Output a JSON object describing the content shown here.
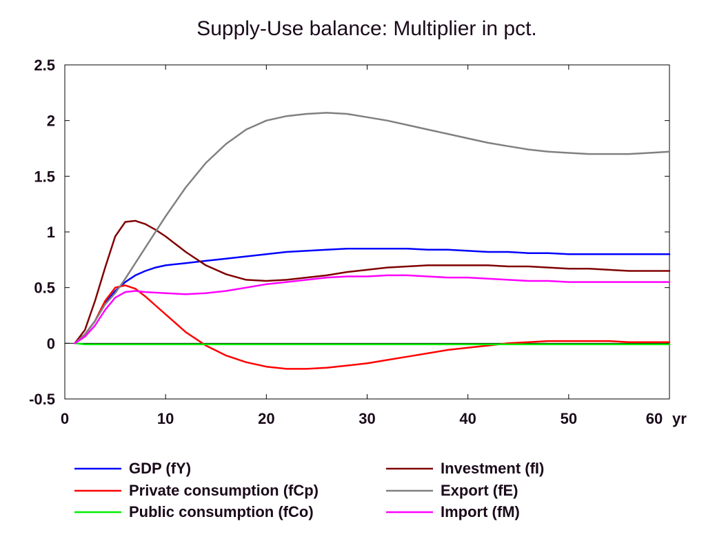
{
  "chart_data": {
    "type": "line",
    "title": "Supply-Use balance: Multiplier in pct.",
    "xlabel": "",
    "ylabel": "",
    "x_unit_label": "yr",
    "xlim": [
      0,
      60
    ],
    "ylim": [
      -0.5,
      2.5
    ],
    "x_ticks": [
      0,
      10,
      20,
      30,
      40,
      50,
      60
    ],
    "y_ticks": [
      -0.5,
      0,
      0.5,
      1,
      1.5,
      2,
      2.5
    ],
    "y_tick_labels": [
      "-0.5",
      "0",
      "0.5",
      "1",
      "1.5",
      "2",
      "2.5"
    ],
    "grid": false,
    "legend_position": "bottom",
    "series": [
      {
        "name": "GDP (fY)",
        "color": "#0000ff",
        "points": [
          [
            1,
            0
          ],
          [
            2,
            0.08
          ],
          [
            3,
            0.2
          ],
          [
            4,
            0.36
          ],
          [
            5,
            0.47
          ],
          [
            6,
            0.55
          ],
          [
            7,
            0.61
          ],
          [
            8,
            0.65
          ],
          [
            9,
            0.68
          ],
          [
            10,
            0.7
          ],
          [
            12,
            0.72
          ],
          [
            14,
            0.74
          ],
          [
            16,
            0.76
          ],
          [
            18,
            0.78
          ],
          [
            20,
            0.8
          ],
          [
            22,
            0.82
          ],
          [
            24,
            0.83
          ],
          [
            26,
            0.84
          ],
          [
            28,
            0.85
          ],
          [
            30,
            0.85
          ],
          [
            32,
            0.85
          ],
          [
            34,
            0.85
          ],
          [
            36,
            0.84
          ],
          [
            38,
            0.84
          ],
          [
            40,
            0.83
          ],
          [
            42,
            0.82
          ],
          [
            44,
            0.82
          ],
          [
            46,
            0.81
          ],
          [
            48,
            0.81
          ],
          [
            50,
            0.8
          ],
          [
            52,
            0.8
          ],
          [
            54,
            0.8
          ],
          [
            56,
            0.8
          ],
          [
            58,
            0.8
          ],
          [
            60,
            0.8
          ]
        ]
      },
      {
        "name": "Private consumption (fCp)",
        "color": "#ff0000",
        "points": [
          [
            1,
            0
          ],
          [
            2,
            0.08
          ],
          [
            3,
            0.2
          ],
          [
            4,
            0.38
          ],
          [
            5,
            0.5
          ],
          [
            6,
            0.52
          ],
          [
            7,
            0.49
          ],
          [
            8,
            0.42
          ],
          [
            9,
            0.34
          ],
          [
            10,
            0.26
          ],
          [
            12,
            0.1
          ],
          [
            14,
            -0.02
          ],
          [
            16,
            -0.11
          ],
          [
            18,
            -0.17
          ],
          [
            20,
            -0.21
          ],
          [
            22,
            -0.23
          ],
          [
            24,
            -0.23
          ],
          [
            26,
            -0.22
          ],
          [
            28,
            -0.2
          ],
          [
            30,
            -0.18
          ],
          [
            32,
            -0.15
          ],
          [
            34,
            -0.12
          ],
          [
            36,
            -0.09
          ],
          [
            38,
            -0.06
          ],
          [
            40,
            -0.04
          ],
          [
            42,
            -0.02
          ],
          [
            44,
            0.0
          ],
          [
            46,
            0.01
          ],
          [
            48,
            0.02
          ],
          [
            50,
            0.02
          ],
          [
            52,
            0.02
          ],
          [
            54,
            0.02
          ],
          [
            56,
            0.01
          ],
          [
            58,
            0.01
          ],
          [
            60,
            0.01
          ]
        ]
      },
      {
        "name": "Public consumption (fCo)",
        "color": "#00ee00",
        "points": [
          [
            1,
            0
          ],
          [
            2,
            -0.01
          ],
          [
            3,
            -0.01
          ],
          [
            5,
            -0.01
          ],
          [
            10,
            -0.01
          ],
          [
            20,
            -0.01
          ],
          [
            30,
            -0.01
          ],
          [
            40,
            -0.01
          ],
          [
            50,
            -0.01
          ],
          [
            60,
            -0.01
          ]
        ]
      },
      {
        "name": "Investment (fI)",
        "color": "#800000",
        "points": [
          [
            1,
            0
          ],
          [
            2,
            0.12
          ],
          [
            3,
            0.38
          ],
          [
            4,
            0.68
          ],
          [
            5,
            0.96
          ],
          [
            6,
            1.09
          ],
          [
            7,
            1.1
          ],
          [
            8,
            1.07
          ],
          [
            9,
            1.02
          ],
          [
            10,
            0.96
          ],
          [
            12,
            0.82
          ],
          [
            14,
            0.7
          ],
          [
            16,
            0.62
          ],
          [
            18,
            0.57
          ],
          [
            20,
            0.56
          ],
          [
            22,
            0.57
          ],
          [
            24,
            0.59
          ],
          [
            26,
            0.61
          ],
          [
            28,
            0.64
          ],
          [
            30,
            0.66
          ],
          [
            32,
            0.68
          ],
          [
            34,
            0.69
          ],
          [
            36,
            0.7
          ],
          [
            38,
            0.7
          ],
          [
            40,
            0.7
          ],
          [
            42,
            0.7
          ],
          [
            44,
            0.69
          ],
          [
            46,
            0.69
          ],
          [
            48,
            0.68
          ],
          [
            50,
            0.67
          ],
          [
            52,
            0.67
          ],
          [
            54,
            0.66
          ],
          [
            56,
            0.65
          ],
          [
            58,
            0.65
          ],
          [
            60,
            0.65
          ]
        ]
      },
      {
        "name": "Export (fE)",
        "color": "#808080",
        "points": [
          [
            1,
            0
          ],
          [
            2,
            0.08
          ],
          [
            3,
            0.2
          ],
          [
            4,
            0.35
          ],
          [
            5,
            0.45
          ],
          [
            6,
            0.58
          ],
          [
            7,
            0.72
          ],
          [
            8,
            0.86
          ],
          [
            9,
            1.0
          ],
          [
            10,
            1.14
          ],
          [
            12,
            1.4
          ],
          [
            14,
            1.62
          ],
          [
            16,
            1.79
          ],
          [
            18,
            1.92
          ],
          [
            20,
            2.0
          ],
          [
            22,
            2.04
          ],
          [
            24,
            2.06
          ],
          [
            26,
            2.07
          ],
          [
            28,
            2.06
          ],
          [
            30,
            2.03
          ],
          [
            32,
            2.0
          ],
          [
            34,
            1.96
          ],
          [
            36,
            1.92
          ],
          [
            38,
            1.88
          ],
          [
            40,
            1.84
          ],
          [
            42,
            1.8
          ],
          [
            44,
            1.77
          ],
          [
            46,
            1.74
          ],
          [
            48,
            1.72
          ],
          [
            50,
            1.71
          ],
          [
            52,
            1.7
          ],
          [
            54,
            1.7
          ],
          [
            56,
            1.7
          ],
          [
            58,
            1.71
          ],
          [
            60,
            1.72
          ]
        ]
      },
      {
        "name": "Import (fM)",
        "color": "#ff00ff",
        "points": [
          [
            1,
            0
          ],
          [
            2,
            0.06
          ],
          [
            3,
            0.16
          ],
          [
            4,
            0.3
          ],
          [
            5,
            0.41
          ],
          [
            6,
            0.46
          ],
          [
            7,
            0.47
          ],
          [
            8,
            0.46
          ],
          [
            10,
            0.45
          ],
          [
            12,
            0.44
          ],
          [
            14,
            0.45
          ],
          [
            16,
            0.47
          ],
          [
            18,
            0.5
          ],
          [
            20,
            0.53
          ],
          [
            22,
            0.55
          ],
          [
            24,
            0.57
          ],
          [
            26,
            0.59
          ],
          [
            28,
            0.6
          ],
          [
            30,
            0.6
          ],
          [
            32,
            0.61
          ],
          [
            34,
            0.61
          ],
          [
            36,
            0.6
          ],
          [
            38,
            0.59
          ],
          [
            40,
            0.59
          ],
          [
            42,
            0.58
          ],
          [
            44,
            0.57
          ],
          [
            46,
            0.56
          ],
          [
            48,
            0.56
          ],
          [
            50,
            0.55
          ],
          [
            52,
            0.55
          ],
          [
            54,
            0.55
          ],
          [
            56,
            0.55
          ],
          [
            58,
            0.55
          ],
          [
            60,
            0.55
          ]
        ]
      }
    ]
  }
}
